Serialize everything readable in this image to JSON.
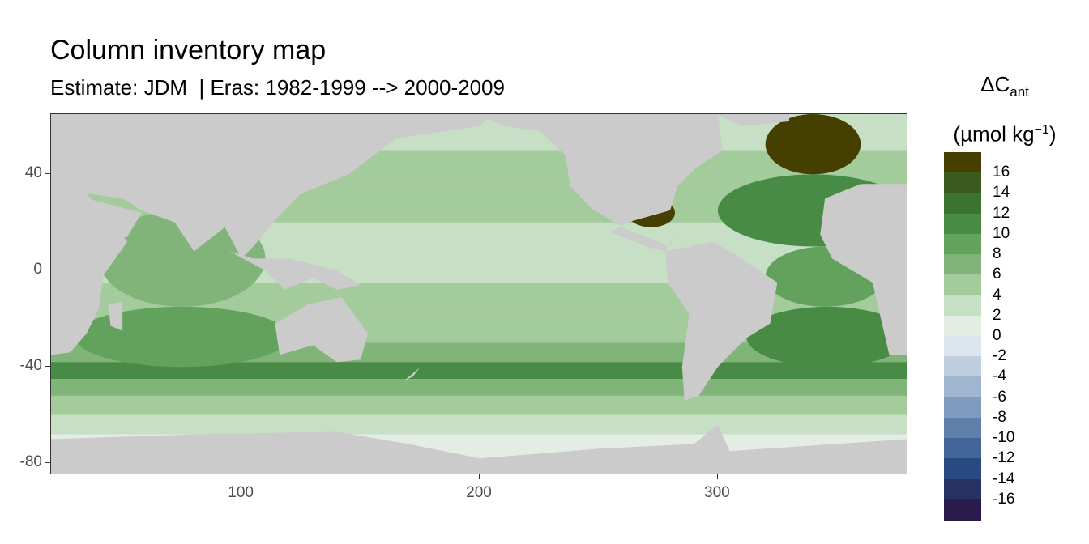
{
  "chart_data": {
    "type": "heatmap",
    "title": "Column inventory map",
    "subtitle": "Estimate: JDM  | Eras: 1982-1999 --> 2000-2009",
    "xlabel": "",
    "ylabel": "",
    "xlim": [
      20,
      380
    ],
    "ylim": [
      -85,
      65
    ],
    "x_ticks": [
      "100",
      "200",
      "300"
    ],
    "x_tick_values": [
      100,
      200,
      300
    ],
    "y_ticks": [
      "40",
      "0",
      "-40",
      "-80"
    ],
    "y_tick_values": [
      40,
      0,
      -40,
      -80
    ],
    "grid": false,
    "legend": {
      "title_main": "ΔC",
      "title_sub": "ant",
      "title_unit_pre": "(µmol kg",
      "title_unit_sup": "−1",
      "title_unit_post": ")",
      "placement": "right",
      "labels": [
        "16",
        "14",
        "12",
        "10",
        "8",
        "6",
        "4",
        "2",
        "0",
        "-2",
        "-4",
        "-6",
        "-8",
        "-10",
        "-12",
        "-14",
        "-16"
      ],
      "bins": [
        {
          "min": 16,
          "max": 18,
          "color": "#453f00"
        },
        {
          "min": 14,
          "max": 16,
          "color": "#3b5a1d"
        },
        {
          "min": 12,
          "max": 14,
          "color": "#3a7430"
        },
        {
          "min": 10,
          "max": 12,
          "color": "#478b45"
        },
        {
          "min": 8,
          "max": 10,
          "color": "#62a25d"
        },
        {
          "min": 6,
          "max": 8,
          "color": "#80b478"
        },
        {
          "min": 4,
          "max": 6,
          "color": "#a3cb9c"
        },
        {
          "min": 2,
          "max": 4,
          "color": "#c6dfc5"
        },
        {
          "min": 0,
          "max": 2,
          "color": "#e3ede4"
        },
        {
          "min": -2,
          "max": 0,
          "color": "#dde5ee"
        },
        {
          "min": -4,
          "max": -2,
          "color": "#c0cfe0"
        },
        {
          "min": -6,
          "max": -4,
          "color": "#a0b5cf"
        },
        {
          "min": -8,
          "max": -6,
          "color": "#7f9cbf"
        },
        {
          "min": -10,
          "max": -8,
          "color": "#5f80ab"
        },
        {
          "min": -12,
          "max": -10,
          "color": "#416597"
        },
        {
          "min": -14,
          "max": -12,
          "color": "#284a80"
        },
        {
          "min": -16,
          "max": -14,
          "color": "#283163"
        },
        {
          "min": -18,
          "max": -16,
          "color": "#2c1b4d"
        }
      ]
    },
    "colors": {
      "land": "#cbcbcb",
      "no_data": "#ffffff"
    },
    "zonal_bands": [
      {
        "lat_min": 50,
        "lat_max": 65,
        "value": 3
      },
      {
        "lat_min": 35,
        "lat_max": 50,
        "value": 5
      },
      {
        "lat_min": 20,
        "lat_max": 35,
        "value": 5
      },
      {
        "lat_min": 5,
        "lat_max": 20,
        "value": 3
      },
      {
        "lat_min": -5,
        "lat_max": 5,
        "value": 2
      },
      {
        "lat_min": -20,
        "lat_max": -5,
        "value": 4
      },
      {
        "lat_min": -30,
        "lat_max": -20,
        "value": 5
      },
      {
        "lat_min": -38,
        "lat_max": -30,
        "value": 7
      },
      {
        "lat_min": -45,
        "lat_max": -38,
        "value": 11
      },
      {
        "lat_min": -52,
        "lat_max": -45,
        "value": 7
      },
      {
        "lat_min": -60,
        "lat_max": -52,
        "value": 5
      },
      {
        "lat_min": -68,
        "lat_max": -60,
        "value": 3
      },
      {
        "lat_min": -78,
        "lat_max": -68,
        "value": 1
      }
    ],
    "regions": [
      {
        "name": "north atlantic subpolar",
        "lon": [
          320,
          360
        ],
        "lat": [
          40,
          65
        ],
        "value": 17
      },
      {
        "name": "north atlantic",
        "lon": [
          300,
          380
        ],
        "lat": [
          10,
          40
        ],
        "value": 11
      },
      {
        "name": "gulf of mexico",
        "lon": [
          262,
          282
        ],
        "lat": [
          18,
          30
        ],
        "value": 17
      },
      {
        "name": "tropical atlantic",
        "lon": [
          320,
          370
        ],
        "lat": [
          -15,
          10
        ],
        "value": 9
      },
      {
        "name": "south atlantic",
        "lon": [
          312,
          380
        ],
        "lat": [
          -40,
          -15
        ],
        "value": 11
      },
      {
        "name": "indian south",
        "lon": [
          30,
          120
        ],
        "lat": [
          -40,
          -15
        ],
        "value": 9
      },
      {
        "name": "indian north",
        "lon": [
          40,
          110
        ],
        "lat": [
          -15,
          25
        ],
        "value": 7
      }
    ],
    "land_polygons": [
      {
        "name": "africa",
        "points": [
          [
            20,
            35
          ],
          [
            35,
            32
          ],
          [
            52,
            12
          ],
          [
            42,
            -2
          ],
          [
            40,
            -16
          ],
          [
            35,
            -26
          ],
          [
            28,
            -34
          ],
          [
            20,
            -35
          ]
        ]
      },
      {
        "name": "africa east",
        "points": [
          [
            360,
            36
          ],
          [
            380,
            36
          ],
          [
            380,
            -35
          ],
          [
            372,
            -35
          ],
          [
            365,
            -5
          ],
          [
            348,
            5
          ],
          [
            343,
            15
          ],
          [
            345,
            30
          ]
        ]
      },
      {
        "name": "europe asia",
        "points": [
          [
            20,
            65
          ],
          [
            205,
            65
          ],
          [
            200,
            60
          ],
          [
            165,
            55
          ],
          [
            145,
            40
          ],
          [
            125,
            32
          ],
          [
            115,
            22
          ],
          [
            105,
            10
          ],
          [
            100,
            5
          ],
          [
            93,
            18
          ],
          [
            80,
            8
          ],
          [
            72,
            20
          ],
          [
            58,
            25
          ],
          [
            50,
            30
          ],
          [
            35,
            32
          ],
          [
            20,
            35
          ]
        ]
      },
      {
        "name": "arabia",
        "points": [
          [
            35,
            30
          ],
          [
            58,
            24
          ],
          [
            52,
            14
          ],
          [
            43,
            12
          ]
        ]
      },
      {
        "name": "southeast asia",
        "points": [
          [
            95,
            8
          ],
          [
            110,
            0
          ],
          [
            118,
            -8
          ],
          [
            130,
            -3
          ],
          [
            140,
            -8
          ],
          [
            150,
            -6
          ],
          [
            140,
            0
          ],
          [
            120,
            5
          ],
          [
            105,
            5
          ]
        ]
      },
      {
        "name": "australia",
        "points": [
          [
            114,
            -22
          ],
          [
            128,
            -14
          ],
          [
            142,
            -11
          ],
          [
            153,
            -26
          ],
          [
            150,
            -37
          ],
          [
            140,
            -38
          ],
          [
            130,
            -31
          ],
          [
            116,
            -35
          ]
        ]
      },
      {
        "name": "north america",
        "points": [
          [
            200,
            65
          ],
          [
            300,
            65
          ],
          [
            302,
            50
          ],
          [
            290,
            42
          ],
          [
            283,
            35
          ],
          [
            280,
            25
          ],
          [
            262,
            20
          ],
          [
            255,
            16
          ],
          [
            270,
            10
          ],
          [
            278,
            8
          ],
          [
            282,
            15
          ],
          [
            280,
            10
          ],
          [
            262,
            17
          ],
          [
            248,
            25
          ],
          [
            238,
            35
          ],
          [
            236,
            48
          ],
          [
            225,
            58
          ],
          [
            210,
            60
          ]
        ]
      },
      {
        "name": "south america",
        "points": [
          [
            278,
            8
          ],
          [
            298,
            12
          ],
          [
            310,
            5
          ],
          [
            325,
            -5
          ],
          [
            322,
            -22
          ],
          [
            312,
            -28
          ],
          [
            300,
            -40
          ],
          [
            292,
            -52
          ],
          [
            286,
            -54
          ],
          [
            285,
            -40
          ],
          [
            288,
            -18
          ],
          [
            279,
            -5
          ]
        ]
      },
      {
        "name": "antarctica",
        "points": [
          [
            20,
            -70
          ],
          [
            80,
            -68
          ],
          [
            140,
            -67
          ],
          [
            170,
            -72
          ],
          [
            200,
            -78
          ],
          [
            250,
            -74
          ],
          [
            290,
            -72
          ],
          [
            300,
            -64
          ],
          [
            305,
            -75
          ],
          [
            380,
            -70
          ],
          [
            380,
            -85
          ],
          [
            20,
            -85
          ]
        ]
      },
      {
        "name": "madagascar",
        "points": [
          [
            44,
            -14
          ],
          [
            50,
            -13
          ],
          [
            50,
            -25
          ],
          [
            45,
            -23
          ]
        ]
      },
      {
        "name": "greenland",
        "points": [
          [
            300,
            65
          ],
          [
            330,
            65
          ],
          [
            330,
            62
          ],
          [
            310,
            60
          ]
        ]
      },
      {
        "name": "new zealand",
        "points": [
          [
            168,
            -46
          ],
          [
            174,
            -41
          ],
          [
            178,
            -37
          ],
          [
            175,
            -40
          ],
          [
            172,
            -44
          ]
        ]
      }
    ]
  }
}
